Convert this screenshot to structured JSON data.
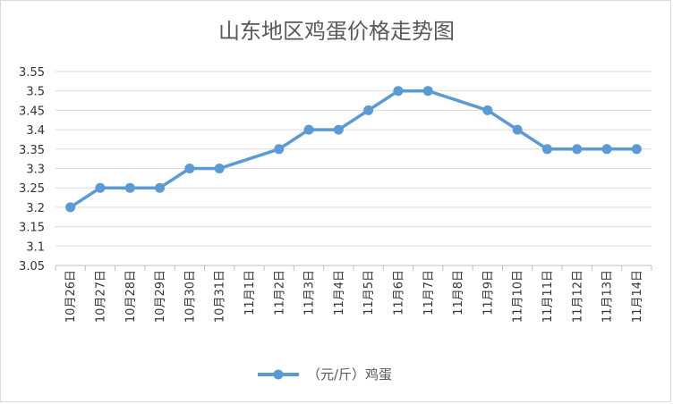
{
  "chart_data": {
    "type": "line",
    "title": "山东地区鸡蛋价格走势图",
    "categories": [
      "10月26日",
      "10月27日",
      "10月28日",
      "10月29日",
      "10月30日",
      "10月31日",
      "11月1日",
      "11月2日",
      "11月3日",
      "11月4日",
      "11月5日",
      "11月6日",
      "11月7日",
      "11月8日",
      "11月9日",
      "11月10日",
      "11月11日",
      "11月12日",
      "11月13日",
      "11月14日"
    ],
    "series": [
      {
        "name": "（元/斤）鸡蛋",
        "values": [
          3.2,
          3.25,
          3.25,
          3.25,
          3.3,
          3.3,
          null,
          3.35,
          3.4,
          3.4,
          3.45,
          3.5,
          3.5,
          null,
          3.45,
          3.4,
          3.35,
          3.35,
          3.35,
          3.35
        ]
      }
    ],
    "y_ticks": [
      "3.05",
      "3.1",
      "3.15",
      "3.2",
      "3.25",
      "3.3",
      "3.35",
      "3.4",
      "3.45",
      "3.5",
      "3.55"
    ],
    "ylim": [
      3.05,
      3.55
    ],
    "grid": true,
    "legend": "bottom",
    "colors": {
      "line": "#5b9bd5",
      "grid": "#d9d9d9",
      "axis": "#bfbfbf"
    }
  }
}
